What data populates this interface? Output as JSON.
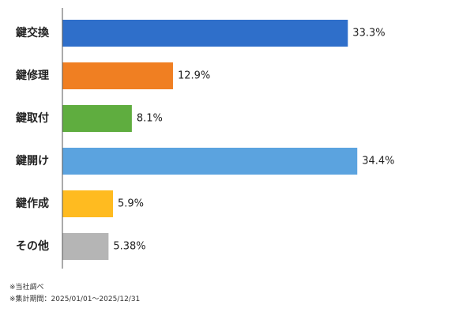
{
  "chart_data": {
    "type": "bar",
    "orientation": "horizontal",
    "categories": [
      "鍵交換",
      "鍵修理",
      "鍵取付",
      "鍵開け",
      "鍵作成",
      "その他"
    ],
    "values": [
      33.3,
      12.9,
      8.1,
      34.4,
      5.9,
      5.38
    ],
    "value_labels": [
      "33.3%",
      "12.9%",
      "8.1%",
      "34.4%",
      "5.9%",
      "5.38%"
    ],
    "colors": [
      "#2f6fca",
      "#f07f22",
      "#5fad3f",
      "#5ba3df",
      "#ffbb20",
      "#b5b5b5"
    ],
    "xlim": [
      0,
      40
    ],
    "grid": false,
    "legend": "none"
  },
  "notes": {
    "source": "※当社調べ",
    "period": "※集計期間：2025/01/01～2025/12/31"
  }
}
